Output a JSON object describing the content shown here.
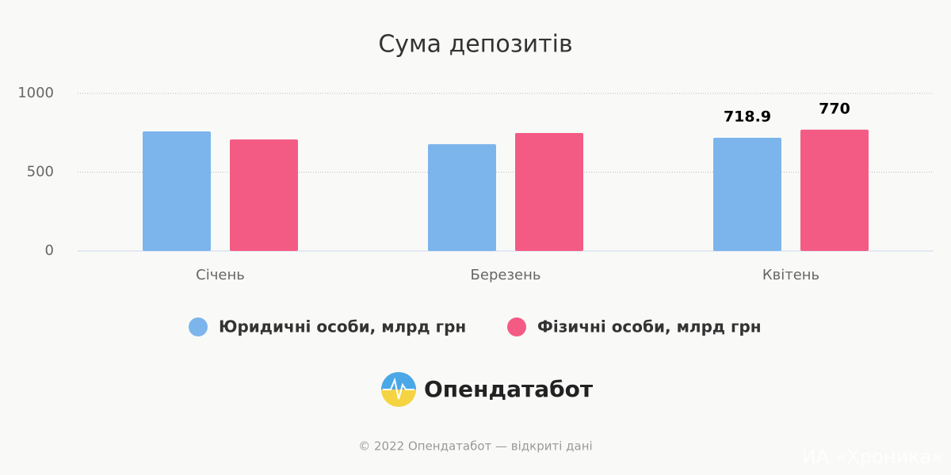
{
  "chart_data": {
    "type": "bar",
    "title": "Сума депозитів",
    "categories": [
      "Січень",
      "Березень",
      "Квітень"
    ],
    "series": [
      {
        "name": "Юридичні особи, млрд грн",
        "color": "#7cb5ec",
        "values": [
          759,
          678,
          718.9
        ],
        "value_labels": [
          null,
          null,
          "718.9"
        ]
      },
      {
        "name": "Фізичні особи, млрд грн",
        "color": "#f45b84",
        "values": [
          708,
          749,
          770
        ],
        "value_labels": [
          null,
          null,
          "770"
        ]
      }
    ],
    "ylim": [
      0,
      1000
    ],
    "yticks": [
      0,
      500,
      1000
    ],
    "grid": true,
    "legend": "bottom"
  },
  "branding": {
    "logo": "Опендатабот",
    "footer": "© 2022 Опендатабот — відкриті дані",
    "watermark": "ИА «Хроника»"
  }
}
